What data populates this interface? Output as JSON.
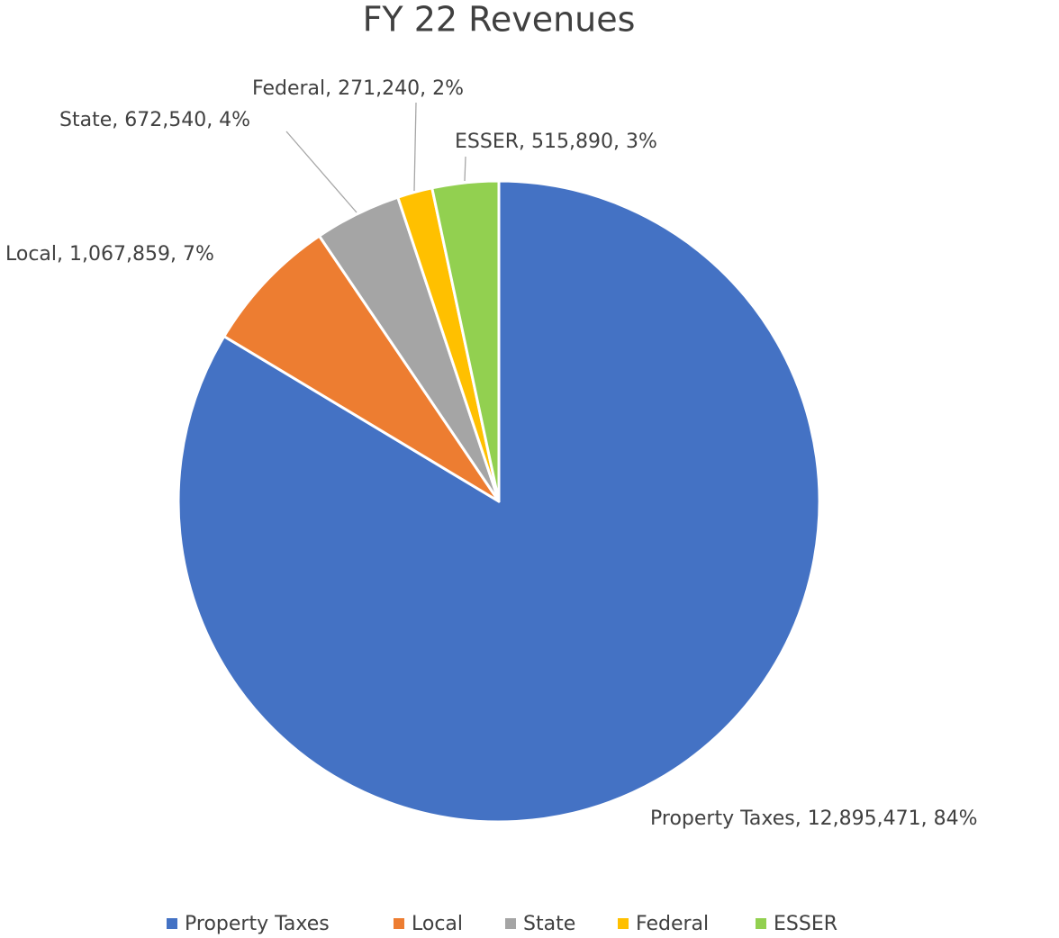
{
  "chart_data": {
    "type": "pie",
    "title": "FY 22 Revenues",
    "categories": [
      "Property Taxes",
      "Local",
      "State",
      "Federal",
      "ESSER"
    ],
    "values": [
      12895471,
      1067859,
      672540,
      271240,
      515890
    ],
    "value_labels": [
      "Property Taxes, 12,895,471, 84%",
      "Local, 1,067,859, 7%",
      "State, 672,540, 4%",
      "Federal, 271,240, 2%",
      "ESSER, 515,890, 3%"
    ],
    "colors": [
      "#4472c4",
      "#ed7d31",
      "#a5a5a5",
      "#ffc000",
      "#92d050"
    ],
    "legend": "bottom"
  }
}
